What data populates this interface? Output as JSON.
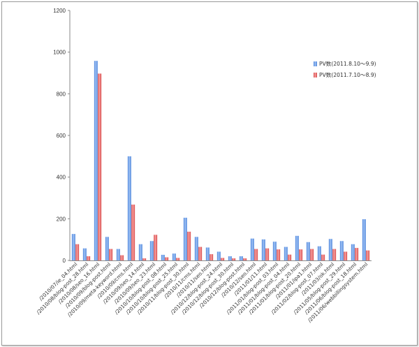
{
  "chart_data": {
    "type": "bar",
    "title": "",
    "xlabel": "",
    "ylabel": "",
    "ylim": [
      0,
      1200
    ],
    "yticks": [
      0,
      200,
      400,
      600,
      800,
      1000,
      1200
    ],
    "grid": false,
    "legend_position": "right",
    "categories": [
      "/2010/07/ie_04.html",
      "/2010/08/blog-post_28.html",
      "/2010/08/seo_16.html",
      "/2010/09/blog-post.html",
      "/2010/09/meta-keyword.html",
      "/2010/09/cms.html",
      "/2010/09/seo_14.html",
      "/2010/09/seo_23.html",
      "/2010/10/blog-post_08.html",
      "/2010/10/blog-post_25.html",
      "/2010/11/blog-post_30.html",
      "/2010/11/cms.html",
      "/2010/11/seo.html",
      "/2010/12/blog-post_24.html",
      "/2010/12/blog-post_30.html",
      "/2010/12/blog-post.html",
      "/2010/12/seo.html",
      "/2011/01/11.html",
      "/2011/01/blog-post_03.html",
      "/2011/01/blog-post_04.html",
      "/2011/01/blog-post_20.html",
      "/2011/01/ipa1.html",
      "/2011/02/blog-post_07.html",
      "/2011/03/ok.html",
      "/2011/05/blog-post_29.html",
      "/2011/06/blog-post_18.html",
      "/2011/06/webbillingsystem.html"
    ],
    "series": [
      {
        "name": "PV数(2011.8.10～9.9)",
        "color": "#6f9ee6",
        "values": [
          127,
          58,
          958,
          113,
          55,
          500,
          78,
          93,
          27,
          33,
          205,
          113,
          62,
          42,
          20,
          20,
          105,
          101,
          90,
          65,
          118,
          88,
          68,
          103,
          93,
          78,
          198
        ]
      },
      {
        "name": "PV数(2011.7.10～8.9)",
        "color": "#e86a6a",
        "values": [
          78,
          20,
          897,
          55,
          25,
          268,
          10,
          123,
          15,
          12,
          138,
          65,
          30,
          12,
          10,
          10,
          55,
          58,
          53,
          28,
          53,
          55,
          28,
          55,
          42,
          60,
          48
        ]
      }
    ]
  }
}
